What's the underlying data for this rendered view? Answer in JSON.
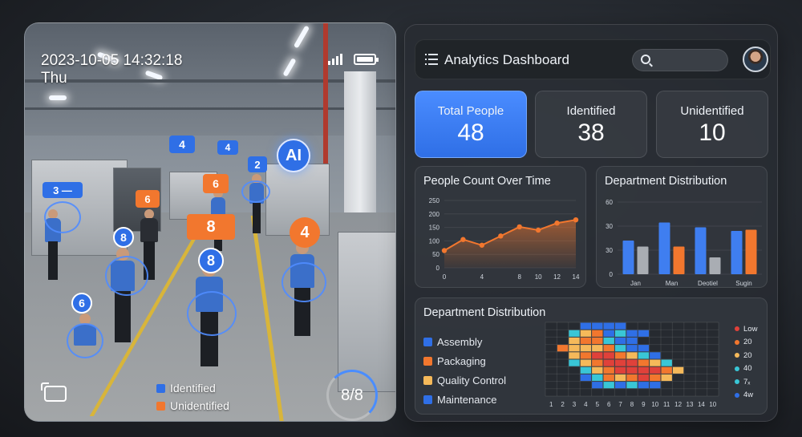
{
  "camera": {
    "datetime": "2023-10-05 14:32:18",
    "day": "Thu",
    "counter": "8/8",
    "ai_badge": "AI",
    "legend": [
      {
        "label": "Identified",
        "color": "#2f6fe6"
      },
      {
        "label": "Unidentified",
        "color": "#f2772e"
      }
    ],
    "tags": {
      "t1": "3",
      "t2": "4",
      "t3": "4",
      "t4": "2",
      "t5": "6",
      "t6": "6",
      "t7": "8",
      "t8": "8",
      "t9": "8",
      "t10": "6",
      "t11": "4"
    }
  },
  "dashboard": {
    "title": "Analytics Dashboard",
    "stats": [
      {
        "label": "Total People",
        "value": "48"
      },
      {
        "label": "Identified",
        "value": "38"
      },
      {
        "label": "Unidentified",
        "value": "10"
      }
    ],
    "line_title": "People Count Over Time",
    "bar_title": "Department Distribution",
    "heatmap_title": "Department Distribution",
    "departments": [
      {
        "label": "Assembly",
        "color": "#2f6fe6"
      },
      {
        "label": "Packaging",
        "color": "#f2772e"
      },
      {
        "label": "Quality Control",
        "color": "#f5b95a"
      },
      {
        "label": "Maintenance",
        "color": "#2f6fe6"
      }
    ],
    "heat_scale": [
      {
        "label": "Low",
        "color": "#e0413a"
      },
      {
        "label": "20",
        "color": "#f2772e"
      },
      {
        "label": "20",
        "color": "#f5b95a"
      },
      {
        "label": "40",
        "color": "#39c6d6"
      },
      {
        "label": "7ₓ",
        "color": "#39c6d6"
      },
      {
        "label": "4w",
        "color": "#2f6fe6"
      }
    ]
  },
  "chart_data": [
    {
      "type": "line",
      "title": "People Count Over Time",
      "x": [
        0,
        2,
        4,
        6,
        8,
        10,
        12,
        14
      ],
      "y": [
        64,
        105,
        84,
        118,
        152,
        140,
        166,
        178
      ],
      "xticks": [
        "0",
        "4",
        "8",
        "10",
        "12",
        "14"
      ],
      "yticks": [
        "0",
        "50",
        "100",
        "150",
        "200",
        "250"
      ],
      "ylim": [
        0,
        250
      ]
    },
    {
      "type": "bar",
      "title": "Department Distribution",
      "categories": [
        "Jan",
        "Man",
        "Deotiel",
        "Sugin"
      ],
      "series": [
        {
          "color": "#3f7ef0",
          "values": [
            28,
            43,
            39,
            36
          ]
        },
        {
          "color": "#a9adb3",
          "values": [
            23,
            0,
            0,
            0
          ]
        },
        {
          "color": "#f2772e",
          "values": [
            0,
            23,
            0,
            37
          ]
        },
        {
          "color": "#a9adb3",
          "values": [
            0,
            0,
            14,
            0
          ]
        }
      ],
      "yticks": [
        "0",
        "30",
        "30",
        "60"
      ],
      "ylim": [
        0,
        60
      ]
    },
    {
      "type": "heatmap",
      "title": "Department Distribution",
      "xticks": [
        "1",
        "2",
        "3",
        "4",
        "5",
        "6",
        "7",
        "8",
        "9",
        "10",
        "11",
        "12",
        "13",
        "14",
        "10"
      ],
      "rows": [
        [
          0,
          0,
          0,
          1,
          1,
          1,
          1,
          0,
          0,
          0,
          0,
          0,
          0,
          0,
          0
        ],
        [
          0,
          0,
          2,
          3,
          4,
          1,
          2,
          1,
          1,
          0,
          0,
          0,
          0,
          0,
          0
        ],
        [
          0,
          0,
          3,
          4,
          4,
          2,
          1,
          1,
          0,
          0,
          0,
          0,
          0,
          0,
          0
        ],
        [
          0,
          4,
          3,
          3,
          3,
          4,
          2,
          1,
          1,
          0,
          0,
          0,
          0,
          0,
          0
        ],
        [
          0,
          0,
          3,
          4,
          5,
          5,
          4,
          3,
          2,
          1,
          0,
          0,
          0,
          0,
          0
        ],
        [
          0,
          0,
          2,
          3,
          4,
          5,
          5,
          5,
          4,
          3,
          2,
          0,
          0,
          0,
          0
        ],
        [
          0,
          0,
          0,
          2,
          3,
          4,
          5,
          5,
          5,
          5,
          4,
          3,
          0,
          0,
          0
        ],
        [
          0,
          0,
          0,
          1,
          2,
          4,
          3,
          4,
          5,
          4,
          3,
          0,
          0,
          0,
          0
        ],
        [
          0,
          0,
          0,
          0,
          1,
          2,
          1,
          2,
          1,
          1,
          0,
          0,
          0,
          0,
          0
        ],
        [
          0,
          0,
          0,
          0,
          0,
          0,
          0,
          0,
          0,
          0,
          0,
          0,
          0,
          0,
          0
        ]
      ]
    }
  ]
}
